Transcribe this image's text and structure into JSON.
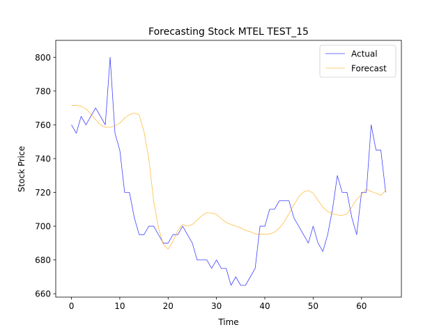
{
  "chart_data": {
    "type": "line",
    "title": "Forecasting Stock MTEL TEST_15",
    "xlabel": "Time",
    "ylabel": "Stock Price",
    "xlim": [
      -3.25,
      68.25
    ],
    "ylim": [
      658,
      810
    ],
    "x_ticks": [
      0,
      10,
      20,
      30,
      40,
      50,
      60
    ],
    "y_ticks": [
      660,
      680,
      700,
      720,
      740,
      760,
      780,
      800
    ],
    "grid": false,
    "legend_position": "top-right",
    "series": [
      {
        "name": "Actual",
        "color": "#0000ff",
        "values": [
          760,
          755,
          765,
          760,
          765,
          770,
          765,
          760,
          800,
          755,
          745,
          720,
          720,
          705,
          695,
          695,
          700,
          700,
          695,
          690,
          690,
          695,
          695,
          700,
          695,
          690,
          680,
          680,
          680,
          675,
          680,
          675,
          675,
          665,
          670,
          665,
          665,
          670,
          675,
          700,
          700,
          710,
          710,
          715,
          715,
          715,
          705,
          700,
          695,
          690,
          700,
          690,
          685,
          695,
          710,
          730,
          720,
          720,
          705,
          695,
          720,
          720,
          760,
          745,
          745,
          720
        ]
      },
      {
        "name": "Forecast",
        "color": "#ffa500",
        "values": [
          771.5,
          771.5,
          771,
          769.5,
          766.5,
          763,
          760,
          758.5,
          758.5,
          759.5,
          761,
          764,
          766,
          767,
          766,
          756,
          740,
          715,
          699,
          689,
          686.5,
          691,
          697.5,
          701,
          700,
          701,
          703.5,
          706.3,
          708,
          707.8,
          707,
          704.4,
          702.2,
          701,
          700,
          699,
          697.5,
          696.7,
          695.5,
          695.2,
          695.2,
          695.4,
          696.5,
          698.8,
          702.5,
          707.5,
          712.5,
          717.4,
          720.2,
          721.1,
          719.5,
          715.3,
          711.3,
          708.7,
          707.4,
          706.6,
          706.4,
          707.3,
          711.4,
          715.9,
          718.6,
          722,
          720.5,
          719.5,
          718.3,
          721.2
        ]
      }
    ]
  }
}
